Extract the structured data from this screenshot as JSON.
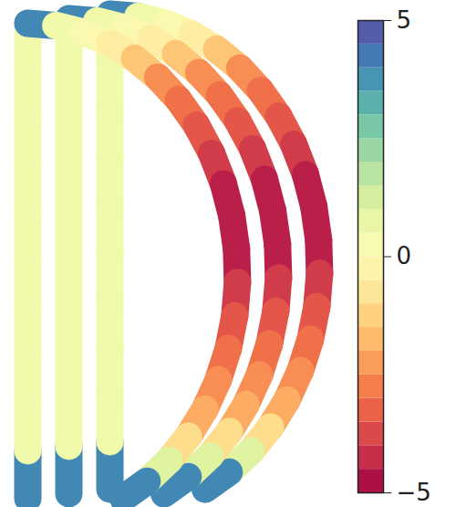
{
  "chart_data": {
    "type": "surface",
    "surfaces": 3,
    "color": "spectral",
    "inner_leg_values": [
      4,
      0.5,
      0.5,
      0.5,
      0.5,
      0.5,
      0.5,
      0.5,
      0.5,
      0.5
    ],
    "arc_values": [
      4,
      0.5,
      0,
      -0.5,
      -1.5,
      -2.5,
      -3,
      -3.5,
      -4,
      -4.5,
      -4.5,
      -4.5,
      -4,
      -3.5,
      -3,
      -2.5,
      -2,
      -1,
      1,
      4
    ],
    "colorbar": {
      "range": [
        -5,
        5
      ],
      "ticks": [
        -5,
        0,
        5
      ]
    }
  }
}
